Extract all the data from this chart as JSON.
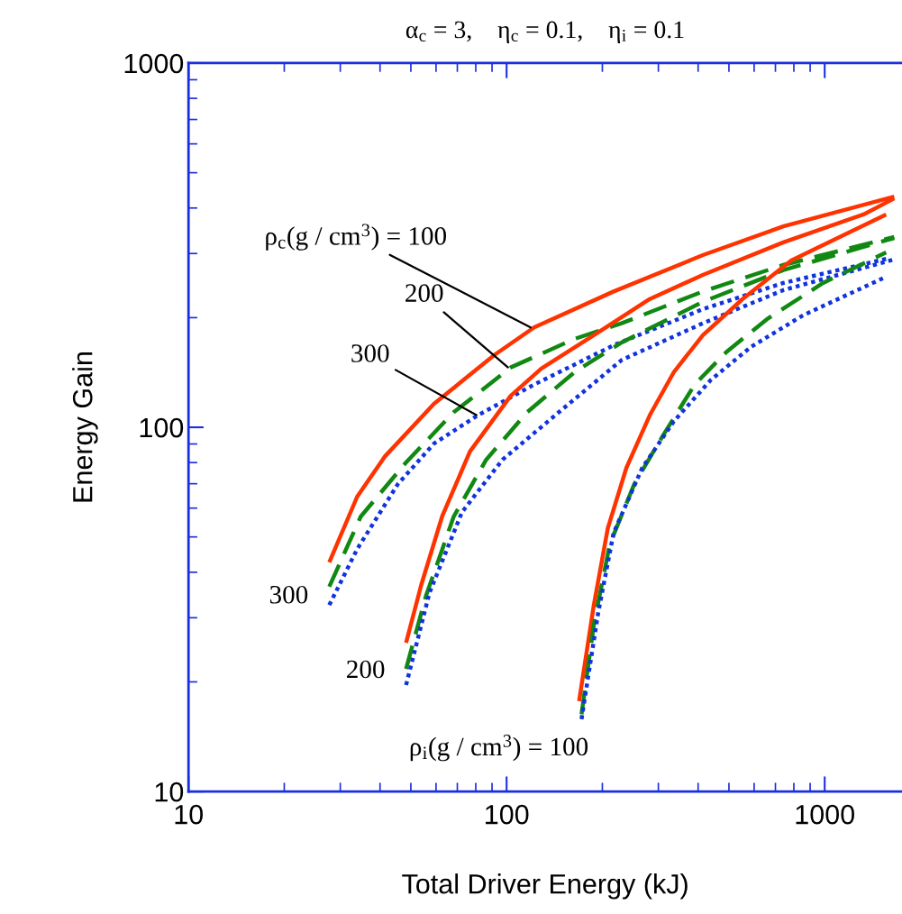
{
  "chart_data": {
    "type": "line",
    "title": "α$_{c}$ = 3,    η$_{c}$ = 0.1,    η$_{i}$ = 0.1",
    "xlabel": "Total Driver Energy (kJ)",
    "ylabel": "Energy Gain",
    "log": "xy",
    "grid": false,
    "legend": false,
    "marker": "none",
    "xlim": [
      10,
      1750
    ],
    "xticks": [
      10,
      100,
      1000
    ],
    "ylim": [
      10,
      1000
    ],
    "yticks": [
      10,
      100,
      1000
    ],
    "series": [
      {
        "color": "#ff3300",
        "line_style": "solid",
        "x": [
          27.7,
          33.9,
          41.5,
          59.1,
          91.6,
          122,
          217,
          414,
          741,
          1654
        ],
        "values": [
          42.6,
          64.5,
          83.3,
          116,
          158,
          188,
          236,
          297,
          356,
          430
        ]
      },
      {
        "color": "#118811",
        "line_style": "dashed",
        "x": [
          27.7,
          34.8,
          48.3,
          68.2,
          103,
          164,
          230,
          414,
          741,
          1654
        ],
        "values": [
          36.5,
          56.9,
          80.1,
          110,
          146,
          175,
          193,
          236,
          279,
          333
        ]
      },
      {
        "color": "#1133dd",
        "line_style": "dotted",
        "x": [
          27.7,
          33.9,
          45.5,
          59.1,
          81.4,
          122,
          217,
          414,
          741,
          1560
        ],
        "values": [
          32.5,
          46.3,
          69.8,
          90.2,
          108,
          131,
          168,
          211,
          249,
          290
        ]
      },
      {
        "color": "#ff3300",
        "line_style": "solid",
        "x": [
          48.3,
          53.9,
          62.7,
          76.7,
          103,
          128.6,
          188,
          282,
          414,
          741,
          1324,
          1654
        ],
        "values": [
          25.6,
          36.9,
          56.9,
          85.8,
          122,
          145,
          179,
          225,
          262,
          322,
          384,
          425
        ]
      },
      {
        "color": "#118811",
        "line_style": "dashed",
        "x": [
          48.3,
          55.7,
          68.2,
          86.3,
          116,
          164,
          230,
          414,
          741,
          1654
        ],
        "values": [
          21.7,
          34.3,
          56.9,
          81.5,
          110,
          142,
          171,
          221,
          270,
          331
        ]
      },
      {
        "color": "#1133dd",
        "line_style": "dotted",
        "x": [
          48.3,
          57.2,
          72.4,
          97.1,
          146,
          230,
          414,
          741,
          1654
        ],
        "values": [
          19.6,
          35.1,
          58.5,
          81.5,
          110,
          153,
          193,
          238,
          289
        ]
      },
      {
        "color": "#ff3300",
        "line_style": "solid",
        "x": [
          169,
          188,
          208,
          238,
          282,
          336,
          414,
          552,
          785,
          1560
        ],
        "values": [
          17.7,
          32.5,
          52.8,
          77.4,
          108,
          142,
          179,
          225,
          287,
          384
        ]
      },
      {
        "color": "#118811",
        "line_style": "dashed",
        "x": [
          172,
          188,
          211,
          252,
          309,
          390,
          491,
          658,
          988,
          1560
        ],
        "values": [
          16.3,
          28.7,
          47.7,
          69.8,
          94.4,
          131,
          161,
          198,
          249,
          302
        ]
      },
      {
        "color": "#1133dd",
        "line_style": "dotted",
        "x": [
          172,
          194,
          217,
          267,
          336,
          439,
          585,
          855,
          1560
        ],
        "values": [
          15.8,
          30.9,
          51.3,
          77.4,
          104,
          135,
          166,
          203,
          259
        ]
      }
    ],
    "annotations": [
      {
        "text": "ρ$_{c}$(g / cm$^{3}$) = 100",
        "x": 119,
        "y": 188
      },
      {
        "text": "200",
        "x": 101,
        "y": 146
      },
      {
        "text": "300",
        "x": 80.4,
        "y": 108
      },
      {
        "text": "300",
        "x": 27.7,
        "y": 32.5
      },
      {
        "text": "200",
        "x": 48.3,
        "y": 19.6
      },
      {
        "text": "ρ$_{i}$(g / cm$^{3}$) = 100",
        "x": 172,
        "y": 15.8
      }
    ]
  }
}
